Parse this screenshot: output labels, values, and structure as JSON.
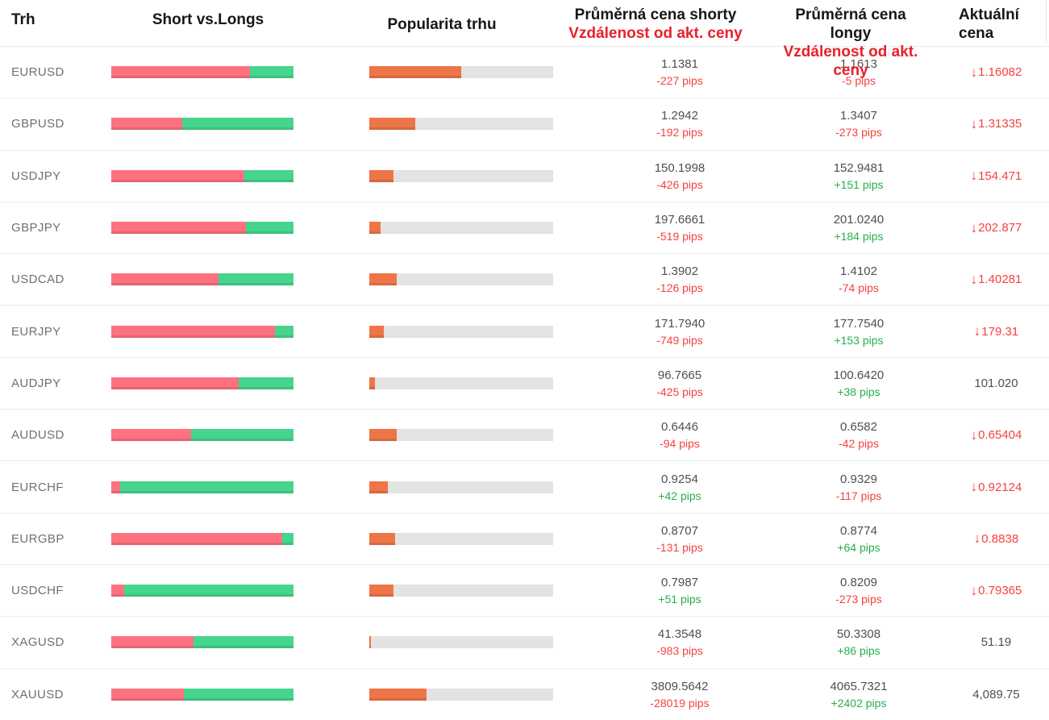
{
  "table": {
    "columns": {
      "market": "Trh",
      "short_vs_longs": "Short vs.Longs",
      "popularity": "Popularita trhu",
      "avg_short_line1": "Průměrná cena shorty",
      "avg_short_line2": "Vzdálenost od akt. ceny",
      "avg_long_line1": "Průměrná cena longy",
      "avg_long_line2": "Vzdálenost od akt. ceny",
      "current_line1": "Aktuální",
      "current_line2": "cena"
    },
    "rows": [
      {
        "market": "EURUSD",
        "short_pct": 76,
        "long_pct": 24,
        "popularity_pct": 50,
        "short_price": "1.1381",
        "short_pips": "-227 pips",
        "short_pips_dir": "neg",
        "long_price": "1.1613",
        "long_pips": "-5 pips",
        "long_pips_dir": "neg",
        "current": "1.16082",
        "current_dir": "down"
      },
      {
        "market": "GBPUSD",
        "short_pct": 39,
        "long_pct": 61,
        "popularity_pct": 25,
        "short_price": "1.2942",
        "short_pips": "-192 pips",
        "short_pips_dir": "neg",
        "long_price": "1.3407",
        "long_pips": "-273 pips",
        "long_pips_dir": "neg",
        "current": "1.31335",
        "current_dir": "down"
      },
      {
        "market": "USDJPY",
        "short_pct": 73,
        "long_pct": 27,
        "popularity_pct": 13,
        "short_price": "150.1998",
        "short_pips": "-426 pips",
        "short_pips_dir": "neg",
        "long_price": "152.9481",
        "long_pips": "+151 pips",
        "long_pips_dir": "pos",
        "current": "154.471",
        "current_dir": "down"
      },
      {
        "market": "GBPJPY",
        "short_pct": 74,
        "long_pct": 26,
        "popularity_pct": 6,
        "short_price": "197.6661",
        "short_pips": "-519 pips",
        "short_pips_dir": "neg",
        "long_price": "201.0240",
        "long_pips": "+184 pips",
        "long_pips_dir": "pos",
        "current": "202.877",
        "current_dir": "down"
      },
      {
        "market": "USDCAD",
        "short_pct": 59,
        "long_pct": 41,
        "popularity_pct": 15,
        "short_price": "1.3902",
        "short_pips": "-126 pips",
        "short_pips_dir": "neg",
        "long_price": "1.4102",
        "long_pips": "-74 pips",
        "long_pips_dir": "neg",
        "current": "1.40281",
        "current_dir": "down"
      },
      {
        "market": "EURJPY",
        "short_pct": 90,
        "long_pct": 10,
        "popularity_pct": 8,
        "short_price": "171.7940",
        "short_pips": "-749 pips",
        "short_pips_dir": "neg",
        "long_price": "177.7540",
        "long_pips": "+153 pips",
        "long_pips_dir": "pos",
        "current": "179.31",
        "current_dir": "down"
      },
      {
        "market": "AUDJPY",
        "short_pct": 70,
        "long_pct": 30,
        "popularity_pct": 3,
        "short_price": "96.7665",
        "short_pips": "-425 pips",
        "short_pips_dir": "neg",
        "long_price": "100.6420",
        "long_pips": "+38 pips",
        "long_pips_dir": "pos",
        "current": "101.020",
        "current_dir": "none"
      },
      {
        "market": "AUDUSD",
        "short_pct": 44,
        "long_pct": 56,
        "popularity_pct": 15,
        "short_price": "0.6446",
        "short_pips": "-94 pips",
        "short_pips_dir": "neg",
        "long_price": "0.6582",
        "long_pips": "-42 pips",
        "long_pips_dir": "neg",
        "current": "0.65404",
        "current_dir": "down"
      },
      {
        "market": "EURCHF",
        "short_pct": 5,
        "long_pct": 95,
        "popularity_pct": 10,
        "short_price": "0.9254",
        "short_pips": "+42 pips",
        "short_pips_dir": "pos",
        "long_price": "0.9329",
        "long_pips": "-117 pips",
        "long_pips_dir": "neg",
        "current": "0.92124",
        "current_dir": "down"
      },
      {
        "market": "EURGBP",
        "short_pct": 94,
        "long_pct": 6,
        "popularity_pct": 14,
        "short_price": "0.8707",
        "short_pips": "-131 pips",
        "short_pips_dir": "neg",
        "long_price": "0.8774",
        "long_pips": "+64 pips",
        "long_pips_dir": "pos",
        "current": "0.8838",
        "current_dir": "down"
      },
      {
        "market": "USDCHF",
        "short_pct": 7,
        "long_pct": 93,
        "popularity_pct": 13,
        "short_price": "0.7987",
        "short_pips": "+51 pips",
        "short_pips_dir": "pos",
        "long_price": "0.8209",
        "long_pips": "-273 pips",
        "long_pips_dir": "neg",
        "current": "0.79365",
        "current_dir": "down"
      },
      {
        "market": "XAGUSD",
        "short_pct": 45,
        "long_pct": 55,
        "popularity_pct": 1,
        "short_price": "41.3548",
        "short_pips": "-983 pips",
        "short_pips_dir": "neg",
        "long_price": "50.3308",
        "long_pips": "+86 pips",
        "long_pips_dir": "pos",
        "current": "51.19",
        "current_dir": "none"
      },
      {
        "market": "XAUUSD",
        "short_pct": 40,
        "long_pct": 60,
        "popularity_pct": 31,
        "short_price": "3809.5642",
        "short_pips": "-28019 pips",
        "short_pips_dir": "neg",
        "long_price": "4065.7321",
        "long_pips": "+2402 pips",
        "long_pips_dir": "pos",
        "current": "4,089.75",
        "current_dir": "none"
      }
    ]
  },
  "icons": {
    "down_arrow": "↓"
  },
  "colors": {
    "bar_red": "#fe717e",
    "bar_green": "#45d58c",
    "bar_orange": "#ee7547",
    "bar_track": "#e3e3e3",
    "pips_red": "#f4423e",
    "pips_green": "#2bad4b",
    "header_red": "#e9202a"
  }
}
